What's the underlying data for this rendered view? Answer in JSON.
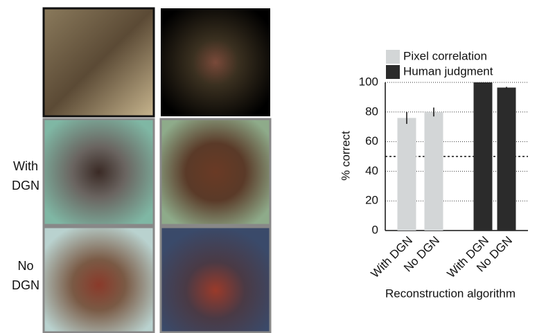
{
  "image_grid": {
    "row_labels": [
      "With DGN",
      "No DGN"
    ]
  },
  "chart_data": {
    "type": "bar",
    "categories": [
      "With DGN",
      "No DGN",
      "With DGN",
      "No DGN"
    ],
    "series": [
      {
        "name": "Pixel correlation",
        "color": "#d3d6d7",
        "values": [
          76,
          80,
          null,
          null
        ],
        "errors": [
          4,
          3,
          null,
          null
        ]
      },
      {
        "name": "Human judgment",
        "color": "#2b2b2b",
        "values": [
          null,
          null,
          100,
          96.5
        ],
        "errors": [
          null,
          null,
          null,
          0.5
        ]
      }
    ],
    "ylabel": "% correct",
    "xlabel": "Reconstruction algorithm",
    "ylim": [
      0,
      100
    ],
    "yticks": [
      0,
      20,
      40,
      60,
      80,
      100
    ],
    "grid": true,
    "reference_line": 50
  }
}
